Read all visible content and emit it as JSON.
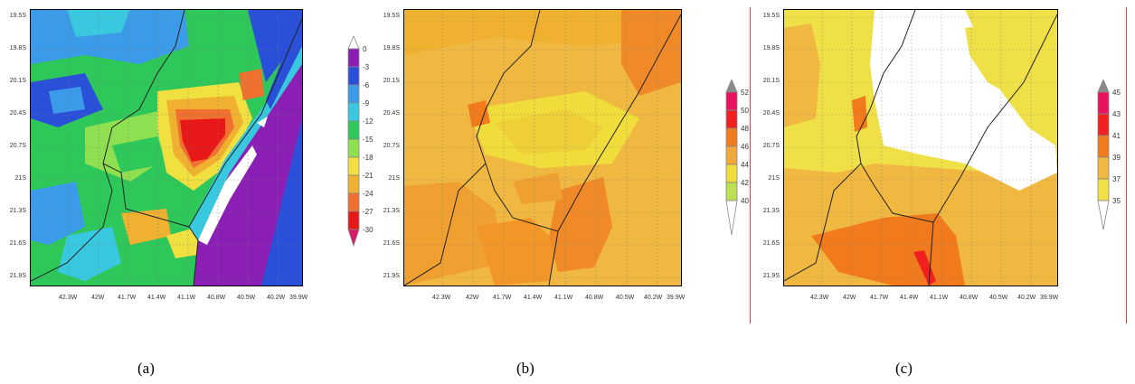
{
  "figure": {
    "captions": [
      "(a)",
      "(b)",
      "(c)"
    ]
  },
  "panels": [
    {
      "id": "a",
      "ytick_labels": [
        "19.5S",
        "19.8S",
        "20.1S",
        "20.4S",
        "20.7S",
        "21S",
        "21.3S",
        "21.6S",
        "21.9S"
      ],
      "xtick_labels": [
        "42.3W",
        "42W",
        "41.7W",
        "41.4W",
        "41.1W",
        "40.8W",
        "40.5W",
        "40.2W",
        "39.9W"
      ],
      "colorbar_labels": [
        "0",
        "-3",
        "-6",
        "-9",
        "-12",
        "-15",
        "-18",
        "-21",
        "-24",
        "-27",
        "-30"
      ],
      "colorbar_colors": [
        "#8b1fb5",
        "#2a4fd8",
        "#3b9be8",
        "#38c8e0",
        "#2ec85a",
        "#8fe050",
        "#f0e040",
        "#f0b030",
        "#f07030",
        "#e81818",
        "#d81868"
      ]
    },
    {
      "id": "b",
      "ytick_labels": [
        "19.5S",
        "19.8S",
        "20.1S",
        "20.4S",
        "20.7S",
        "21S",
        "21.3S",
        "21.6S",
        "21.9S"
      ],
      "xtick_labels": [
        "42.3W",
        "42W",
        "41.7W",
        "41.4W",
        "41.1W",
        "40.8W",
        "40.5W",
        "40.2W",
        "39.9W"
      ],
      "colorbar_labels": [
        "52",
        "50",
        "48",
        "46",
        "44",
        "42",
        "40"
      ],
      "colorbar_colors": [
        "#8a8a8a",
        "#e8125e",
        "#f02020",
        "#f07a1c",
        "#f0a838",
        "#f0dc3a",
        "#bce050",
        "#ffffff"
      ]
    },
    {
      "id": "c",
      "ytick_labels": [
        "19.5S",
        "19.8S",
        "20.1S",
        "20.4S",
        "20.7S",
        "21S",
        "21.3S",
        "21.6S",
        "21.9S"
      ],
      "xtick_labels": [
        "42.3W",
        "42W",
        "41.7W",
        "41.4W",
        "41.1W",
        "40.8W",
        "40.5W",
        "40.2W",
        "39.9W"
      ],
      "colorbar_labels": [
        "45",
        "43",
        "41",
        "39",
        "37",
        "35"
      ],
      "colorbar_colors": [
        "#8a8a8a",
        "#e8125e",
        "#f02020",
        "#f07a1c",
        "#f0b840",
        "#f0e048",
        "#ffffff"
      ]
    }
  ]
}
